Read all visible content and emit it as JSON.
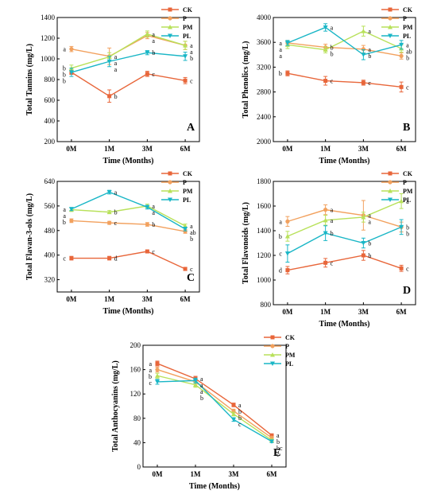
{
  "colors": {
    "CK": "#E8663A",
    "P": "#F2A15E",
    "PM": "#B8E15A",
    "PL": "#19B6C6",
    "axis": "#000000"
  },
  "legend": {
    "series": [
      "CK",
      "P",
      "PM",
      "PL"
    ]
  },
  "chart_data": [
    {
      "type": "line",
      "panel": "A",
      "ylabel": "Total Tannins (mg/L)",
      "xlabel": "Time (Months)",
      "categories": [
        "0M",
        "1M",
        "3M",
        "6M"
      ],
      "ylim": [
        200,
        1400
      ],
      "yticks": [
        200,
        400,
        600,
        800,
        1000,
        1200,
        1400
      ],
      "series": [
        {
          "name": "CK",
          "values": [
            870,
            640,
            855,
            790
          ],
          "errors": [
            20,
            60,
            25,
            30
          ],
          "letters": [
            "b",
            "b",
            "c",
            "c"
          ]
        },
        {
          "name": "P",
          "values": [
            1095,
            1025,
            1225,
            1130
          ],
          "errors": [
            25,
            80,
            30,
            40
          ],
          "letters": [
            "a",
            "a",
            "a",
            "a"
          ]
        },
        {
          "name": "PM",
          "values": [
            910,
            1020,
            1240,
            1130
          ],
          "errors": [
            30,
            40,
            30,
            40
          ],
          "letters": [
            "b",
            "a",
            "a",
            "a"
          ]
        },
        {
          "name": "PL",
          "values": [
            870,
            975,
            1060,
            1025
          ],
          "errors": [
            40,
            50,
            20,
            40
          ],
          "letters": [
            "b",
            "a",
            "b",
            "b"
          ]
        }
      ]
    },
    {
      "type": "line",
      "panel": "B",
      "ylabel": "Total Phenolics (mg/L)",
      "xlabel": "Time (Months)",
      "categories": [
        "0M",
        "1M",
        "3M",
        "6M"
      ],
      "ylim": [
        2000,
        4000
      ],
      "yticks": [
        2000,
        2400,
        2800,
        3200,
        3600,
        4000
      ],
      "series": [
        {
          "name": "CK",
          "values": [
            3100,
            2980,
            2950,
            2880
          ],
          "errors": [
            40,
            70,
            40,
            80
          ],
          "letters": [
            "b",
            "c",
            "c",
            "c"
          ]
        },
        {
          "name": "P",
          "values": [
            3590,
            3520,
            3490,
            3380
          ],
          "errors": [
            40,
            50,
            60,
            50
          ],
          "letters": [
            "a",
            "b",
            "a",
            "b"
          ]
        },
        {
          "name": "PM",
          "values": [
            3560,
            3480,
            3780,
            3500
          ],
          "errors": [
            60,
            50,
            80,
            60
          ],
          "letters": [
            "a",
            "b",
            "a",
            "ab"
          ]
        },
        {
          "name": "PL",
          "values": [
            3590,
            3840,
            3400,
            3560
          ],
          "errors": [
            40,
            60,
            80,
            70
          ],
          "letters": [
            "a",
            "a",
            "b",
            "a"
          ]
        }
      ]
    },
    {
      "type": "line",
      "panel": "C",
      "ylabel": "Total Flavan-3-ols (mg/L)",
      "xlabel": "Time (Months)",
      "categories": [
        "0M",
        "1M",
        "3M",
        "6M"
      ],
      "ylim": [
        280,
        640
      ],
      "yticks": [
        320,
        400,
        480,
        560,
        640
      ],
      "series": [
        {
          "name": "CK",
          "values": [
            390,
            390,
            412,
            355
          ],
          "errors": [
            6,
            6,
            4,
            5
          ],
          "letters": [
            "c",
            "d",
            "c",
            "c"
          ]
        },
        {
          "name": "P",
          "values": [
            512,
            505,
            500,
            477
          ],
          "errors": [
            6,
            5,
            6,
            6
          ],
          "letters": [
            "b",
            "c",
            "b",
            "b"
          ]
        },
        {
          "name": "PM",
          "values": [
            548,
            540,
            560,
            495
          ],
          "errors": [
            6,
            5,
            6,
            6
          ],
          "letters": [
            "a",
            "b",
            "a",
            "a"
          ]
        },
        {
          "name": "PL",
          "values": [
            550,
            605,
            556,
            485
          ],
          "errors": [
            5,
            6,
            6,
            6
          ],
          "letters": [
            "a",
            "a",
            "a",
            "ab"
          ]
        }
      ]
    },
    {
      "type": "line",
      "panel": "D",
      "ylabel": "Total Flavonoids (mg/L)",
      "xlabel": "Time (Months)",
      "categories": [
        "0M",
        "1M",
        "3M",
        "6M"
      ],
      "ylim": [
        800,
        1800
      ],
      "yticks": [
        800,
        1000,
        1200,
        1400,
        1600,
        1800
      ],
      "series": [
        {
          "name": "CK",
          "values": [
            1080,
            1140,
            1200,
            1095
          ],
          "errors": [
            30,
            35,
            40,
            25
          ],
          "letters": [
            "d",
            "c",
            "b",
            "c"
          ]
        },
        {
          "name": "P",
          "values": [
            1475,
            1570,
            1525,
            1430
          ],
          "errors": [
            40,
            40,
            120,
            40
          ],
          "letters": [
            "a",
            "a",
            "a",
            "b"
          ]
        },
        {
          "name": "PM",
          "values": [
            1355,
            1485,
            1510,
            1640
          ],
          "errors": [
            40,
            40,
            40,
            60
          ],
          "letters": [
            "b",
            "a",
            "a",
            "a"
          ]
        },
        {
          "name": "PL",
          "values": [
            1215,
            1380,
            1300,
            1430
          ],
          "errors": [
            70,
            60,
            40,
            60
          ],
          "letters": [
            "c",
            "b",
            "b",
            "b"
          ]
        }
      ]
    },
    {
      "type": "line",
      "panel": "E",
      "ylabel": "Total Anthocyanins (mg/L)",
      "xlabel": "Time (Months)",
      "categories": [
        "0M",
        "1M",
        "3M",
        "6M"
      ],
      "ylim": [
        0,
        200
      ],
      "yticks": [
        0,
        40,
        80,
        120,
        160,
        200
      ],
      "series": [
        {
          "name": "CK",
          "values": [
            170,
            145,
            102,
            52
          ],
          "errors": [
            4,
            4,
            3,
            2
          ],
          "letters": [
            "a",
            "a",
            "a",
            "a"
          ]
        },
        {
          "name": "P",
          "values": [
            160,
            140,
            92,
            48
          ],
          "errors": [
            4,
            4,
            3,
            2
          ],
          "letters": [
            "a",
            "a",
            "b",
            "b"
          ]
        },
        {
          "name": "PM",
          "values": [
            150,
            135,
            87,
            44
          ],
          "errors": [
            4,
            4,
            3,
            2
          ],
          "letters": [
            "b",
            "b",
            "b",
            "bc"
          ]
        },
        {
          "name": "PL",
          "values": [
            140,
            142,
            78,
            42
          ],
          "errors": [
            4,
            4,
            3,
            2
          ],
          "letters": [
            "c",
            "a",
            "c",
            "c"
          ]
        }
      ]
    }
  ]
}
